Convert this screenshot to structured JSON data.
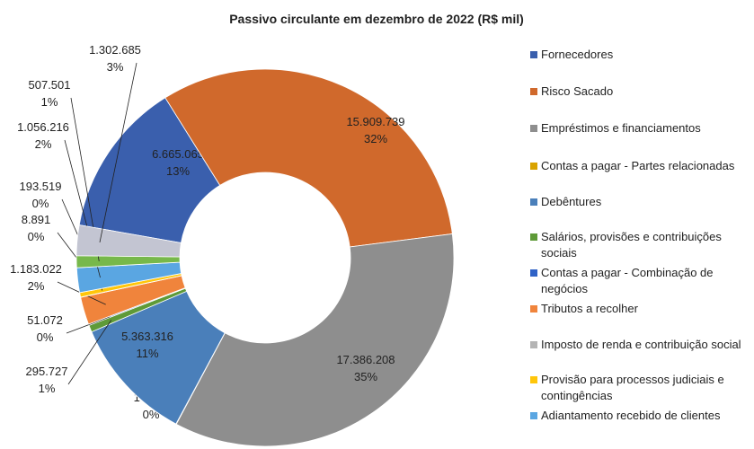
{
  "chart_data": {
    "type": "donut",
    "title": "Passivo circulante em dezembro de 2022 (R$ mil)",
    "categories": [
      "Fornecedores",
      "Risco Sacado",
      "Empréstimos e financiamentos",
      "Contas a pagar - Partes relacionadas",
      "Debêntures",
      "Salários, provisões e contribuições sociais",
      "Contas a pagar - Combinação de negócios",
      "Tributos a recolher",
      "Imposto de renda e contribuição social",
      "Provisão para processos judiciais e contingências",
      "Adiantamento recebido de clientes",
      null,
      null
    ],
    "series": [
      {
        "values": [
          6665065,
          15909739,
          17386208,
          16114,
          5363316,
          295727,
          51072,
          1183022,
          8891,
          193519,
          1056216,
          507501,
          1302685
        ],
        "value_labels": [
          "6.665.065",
          "15.909.739",
          "17.386.208",
          "16.114",
          "5.363.316",
          "295.727",
          "51.072",
          "1.183.022",
          "8.891",
          "193.519",
          "1.056.216",
          "507.501",
          "1.302.685"
        ],
        "percent_labels": [
          "13%",
          "32%",
          "35%",
          "0%",
          "11%",
          "1%",
          "0%",
          "2%",
          "0%",
          "0%",
          "2%",
          "1%",
          "3%"
        ],
        "colors": [
          "#3a5fad",
          "#d0692c",
          "#8e8e8e",
          "#d9a300",
          "#4a7fba",
          "#5e9a38",
          "#2f62c6",
          "#f0843c",
          "#b4b4b4",
          "#ffc60a",
          "#5aa6e2",
          "#77b84b",
          "#c3c5d2"
        ]
      }
    ]
  }
}
